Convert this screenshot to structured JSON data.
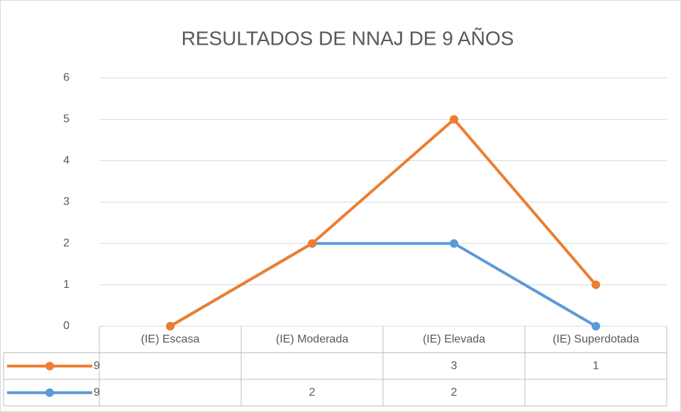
{
  "chart_data": {
    "type": "line",
    "stacked": true,
    "title": "RESULTADOS DE NNAJ DE 9 AÑOS",
    "categories": [
      "(IE) Escasa",
      "(IE) Moderada",
      "(IE) Elevada",
      "(IE) Superdotada"
    ],
    "series": [
      {
        "name": "9",
        "color": "#ED7D31",
        "values": [
          null,
          null,
          3,
          1
        ]
      },
      {
        "name": "9",
        "color": "#5B9BD5",
        "values": [
          null,
          2,
          2,
          null
        ]
      }
    ],
    "ylim": [
      0,
      6
    ],
    "yticks": [
      0,
      1,
      2,
      3,
      4,
      5,
      6
    ],
    "grid": true,
    "data_table": true
  }
}
